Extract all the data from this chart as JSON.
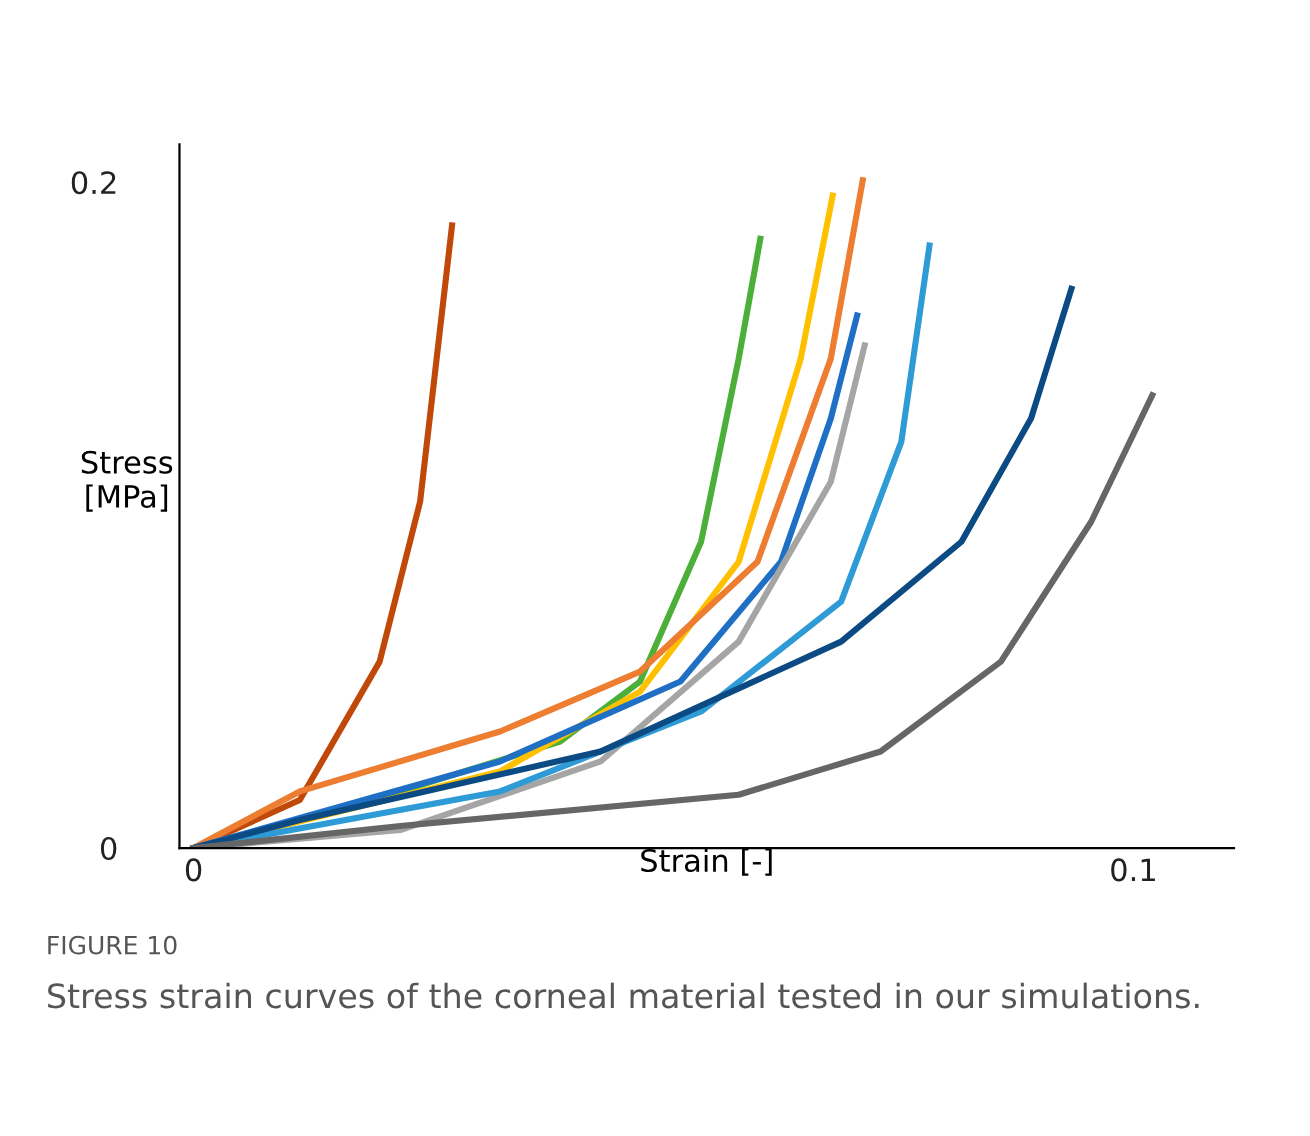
{
  "chart_data": {
    "type": "line",
    "title": "FIGURE 10",
    "xlabel": "Strain [-]",
    "ylabel": "Stress\n[MPa]",
    "annotations": [
      "Stress strain curves of the corneal material tested in our simulations."
    ],
    "xlim": [
      -0.0015,
      0.1107
    ],
    "ylim": [
      0,
      0.2114
    ],
    "xticks": [
      0,
      0.1
    ],
    "yticks": [
      0,
      0.2
    ],
    "grid": false,
    "legend": false,
    "marker": "none",
    "line_style": "solid",
    "series": [
      {
        "color": "#c0490a",
        "x": [
          0,
          0.0113,
          0.0198,
          0.0241,
          0.0275
        ],
        "values": [
          0,
          0.0144,
          0.056,
          0.104,
          0.187
        ]
      },
      {
        "color": "#4caf3a",
        "x": [
          0,
          0.022,
          0.039,
          0.0475,
          0.054,
          0.058,
          0.0603
        ],
        "values": [
          0,
          0.017,
          0.032,
          0.05,
          0.092,
          0.147,
          0.183
        ]
      },
      {
        "color": "#ffc000",
        "x": [
          0,
          0.0326,
          0.0475,
          0.058,
          0.0646,
          0.068
        ],
        "values": [
          0,
          0.023,
          0.047,
          0.086,
          0.147,
          0.196
        ]
      },
      {
        "color": "#ed7d31",
        "x": [
          0,
          0.0113,
          0.0326,
          0.0475,
          0.06,
          0.0678,
          0.0712
        ],
        "values": [
          0,
          0.017,
          0.035,
          0.053,
          0.086,
          0.147,
          0.2006
        ]
      },
      {
        "color": "#1f6fc5",
        "x": [
          0,
          0.0326,
          0.0518,
          0.0625,
          0.0678,
          0.0706
        ],
        "values": [
          0,
          0.026,
          0.05,
          0.086,
          0.129,
          0.16
        ]
      },
      {
        "color": "#a5a5a5",
        "x": [
          0,
          0.022,
          0.0433,
          0.058,
          0.0678,
          0.0714
        ],
        "values": [
          0,
          0.0054,
          0.026,
          0.062,
          0.11,
          0.151
        ]
      },
      {
        "color": "#2e9bd6",
        "x": [
          0,
          0.0326,
          0.054,
          0.0689,
          0.0753,
          0.0783
        ],
        "values": [
          0,
          0.017,
          0.041,
          0.074,
          0.122,
          0.181
        ]
      },
      {
        "color": "#0b4a82",
        "x": [
          0,
          0.0113,
          0.0433,
          0.0689,
          0.0817,
          0.0891,
          0.0934
        ],
        "values": [
          0,
          0.0084,
          0.029,
          0.062,
          0.092,
          0.129,
          0.168
        ]
      },
      {
        "color": "#666666",
        "x": [
          0,
          0.022,
          0.058,
          0.0731,
          0.0859,
          0.0955,
          0.102
        ],
        "values": [
          0,
          0.0066,
          0.016,
          0.029,
          0.056,
          0.098,
          0.136
        ]
      }
    ]
  }
}
